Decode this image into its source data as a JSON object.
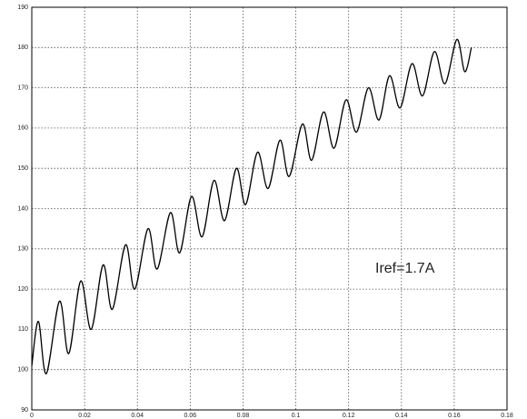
{
  "chart_data": {
    "type": "line",
    "annotation": "Iref=1.7A",
    "x": [
      0,
      0.0025,
      0.0055,
      0.0105,
      0.014,
      0.0185,
      0.0225,
      0.027,
      0.0305,
      0.0355,
      0.039,
      0.044,
      0.0475,
      0.0525,
      0.056,
      0.0605,
      0.0645,
      0.069,
      0.073,
      0.0775,
      0.081,
      0.0855,
      0.0895,
      0.094,
      0.0975,
      0.1025,
      0.106,
      0.1105,
      0.1145,
      0.119,
      0.123,
      0.1275,
      0.1315,
      0.1355,
      0.1395,
      0.144,
      0.148,
      0.1525,
      0.1565,
      0.161,
      0.164,
      0.1665
    ],
    "values": [
      101,
      112,
      99,
      117,
      104,
      122,
      110,
      126,
      115,
      131,
      120,
      135,
      125,
      139,
      129,
      143,
      133,
      147,
      137,
      150,
      141,
      154,
      145,
      157,
      148,
      161,
      152,
      164,
      155,
      167,
      159,
      170,
      162,
      173,
      165,
      176,
      168,
      179,
      171,
      182,
      174,
      180
    ],
    "color": "#000000",
    "xlim": [
      0,
      0.18
    ],
    "xticks": [
      0,
      0.02,
      0.04,
      0.06,
      0.08,
      0.1,
      0.12,
      0.14,
      0.16,
      0.18
    ],
    "ylim": [
      90,
      190
    ],
    "yticks": [
      90,
      100,
      110,
      120,
      130,
      140,
      150,
      160,
      170,
      180,
      190
    ],
    "grid": true
  }
}
